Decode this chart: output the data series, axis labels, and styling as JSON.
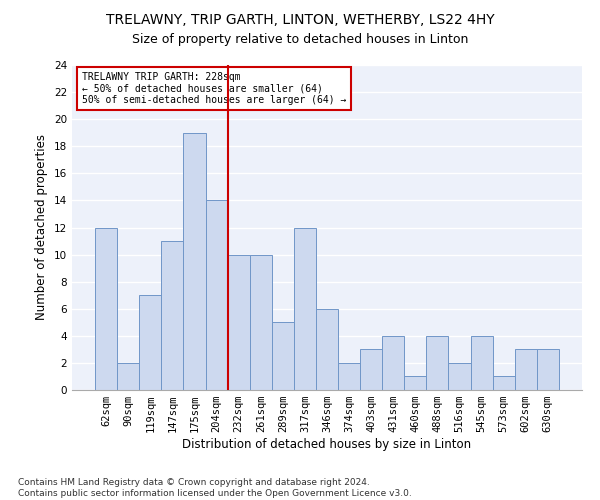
{
  "title": "TRELAWNY, TRIP GARTH, LINTON, WETHERBY, LS22 4HY",
  "subtitle": "Size of property relative to detached houses in Linton",
  "xlabel": "Distribution of detached houses by size in Linton",
  "ylabel": "Number of detached properties",
  "categories": [
    "62sqm",
    "90sqm",
    "119sqm",
    "147sqm",
    "175sqm",
    "204sqm",
    "232sqm",
    "261sqm",
    "289sqm",
    "317sqm",
    "346sqm",
    "374sqm",
    "403sqm",
    "431sqm",
    "460sqm",
    "488sqm",
    "516sqm",
    "545sqm",
    "573sqm",
    "602sqm",
    "630sqm"
  ],
  "values": [
    12,
    2,
    7,
    11,
    19,
    14,
    10,
    10,
    5,
    12,
    6,
    2,
    3,
    4,
    1,
    4,
    2,
    4,
    1,
    3,
    3
  ],
  "bar_color": "#cdd9ef",
  "bar_edge_color": "#7096c8",
  "vline_x_index": 5.5,
  "vline_color": "#cc0000",
  "annotation_text": "TRELAWNY TRIP GARTH: 228sqm\n← 50% of detached houses are smaller (64)\n50% of semi-detached houses are larger (64) →",
  "ylim": [
    0,
    24
  ],
  "yticks": [
    0,
    2,
    4,
    6,
    8,
    10,
    12,
    14,
    16,
    18,
    20,
    22,
    24
  ],
  "footnote": "Contains HM Land Registry data © Crown copyright and database right 2024.\nContains public sector information licensed under the Open Government Licence v3.0.",
  "bg_color": "#edf1fa",
  "grid_color": "#ffffff",
  "title_fontsize": 10,
  "subtitle_fontsize": 9,
  "axis_label_fontsize": 8.5,
  "tick_fontsize": 7.5,
  "footnote_fontsize": 6.5
}
